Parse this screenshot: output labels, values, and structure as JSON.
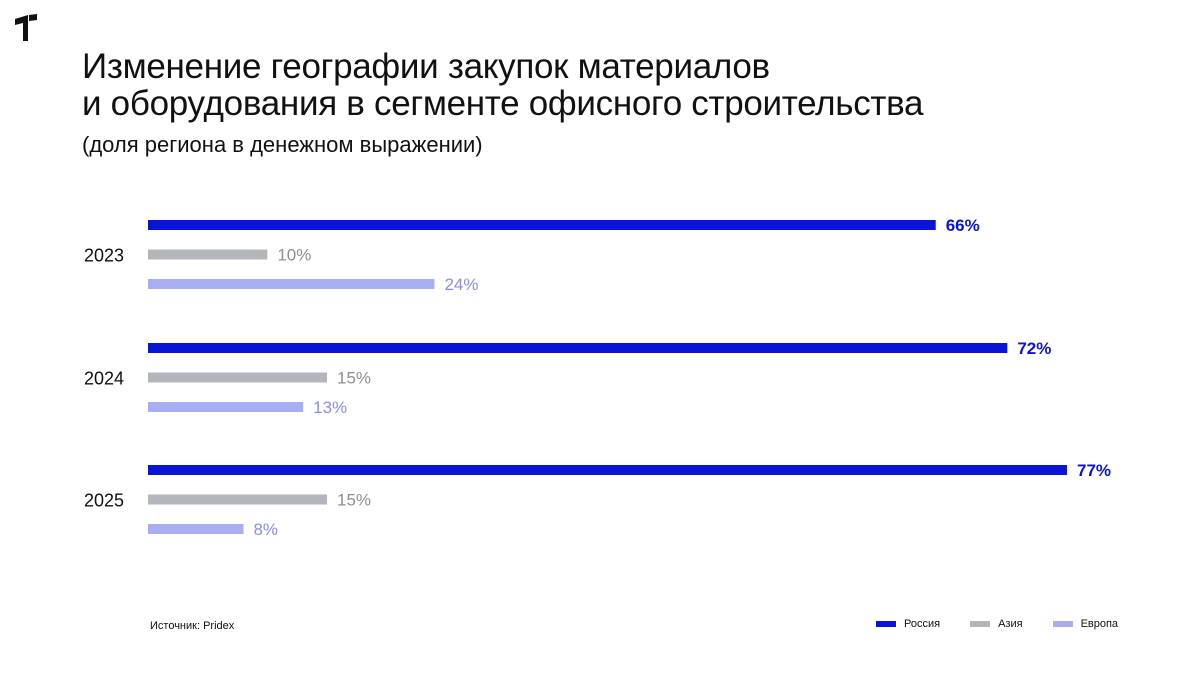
{
  "header": {
    "title_line1": "Изменение географии закупок материалов",
    "title_line2": "и оборудования в сегменте офисного строительства",
    "subtitle": "(доля региона в денежном выражении)"
  },
  "footer": {
    "source": "Источник: Pridex"
  },
  "colors": {
    "russia": "#0a14d6",
    "asia": "#b3b6bb",
    "europe": "#a9adf3"
  },
  "icons": {
    "logo": "brand-logo-icon"
  },
  "chart_data": {
    "type": "bar",
    "orientation": "horizontal",
    "categories": [
      "2023",
      "2024",
      "2025"
    ],
    "series": [
      {
        "name": "Россия",
        "values": [
          66,
          72,
          77
        ],
        "labels": [
          "66%",
          "72%",
          "77%"
        ],
        "color": "#0a14d6",
        "label_color": "#0a14d6",
        "bold_labels": true
      },
      {
        "name": "Азия",
        "values": [
          10,
          15,
          15
        ],
        "labels": [
          "10%",
          "15%",
          "15%"
        ],
        "color": "#b3b6bb",
        "label_color": "#8c8f94",
        "bold_labels": false
      },
      {
        "name": "Европа",
        "values": [
          24,
          13,
          8
        ],
        "labels": [
          "24%",
          "13%",
          "8%"
        ],
        "color": "#a9adf3",
        "label_color": "#8a8ee8",
        "bold_labels": false
      }
    ],
    "title": "Изменение географии закупок материалов и оборудования в сегменте офисного строительства",
    "subtitle": "(доля региона в денежном выражении)",
    "xlim": [
      0,
      77
    ],
    "grid": false,
    "legend_position": "bottom-right"
  }
}
